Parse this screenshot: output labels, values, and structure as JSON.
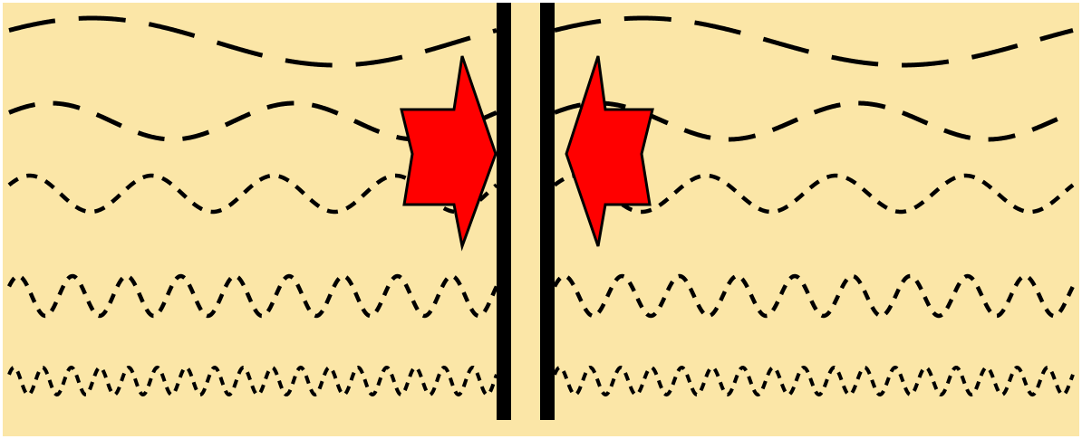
{
  "figure": {
    "background_color": "#fbe6a7",
    "wave_color": "#000000",
    "bar_color": "#000000",
    "arrow_fill_color": "#ff0000",
    "arrow_outline_color": "#000000",
    "wave_style": "dashed",
    "wave_rows": [
      {
        "id": "wave-row-1",
        "cycles_per_half": 1
      },
      {
        "id": "wave-row-2",
        "cycles_per_half": 2
      },
      {
        "id": "wave-row-3",
        "cycles_per_half": 4
      },
      {
        "id": "wave-row-4",
        "cycles_per_half": 9
      },
      {
        "id": "wave-row-5",
        "cycles_per_half": 17
      }
    ],
    "vertical_bars": [
      "left-bar",
      "right-bar"
    ],
    "arrows": [
      {
        "id": "left-arrow",
        "direction": "right"
      },
      {
        "id": "right-arrow",
        "direction": "left"
      }
    ]
  }
}
